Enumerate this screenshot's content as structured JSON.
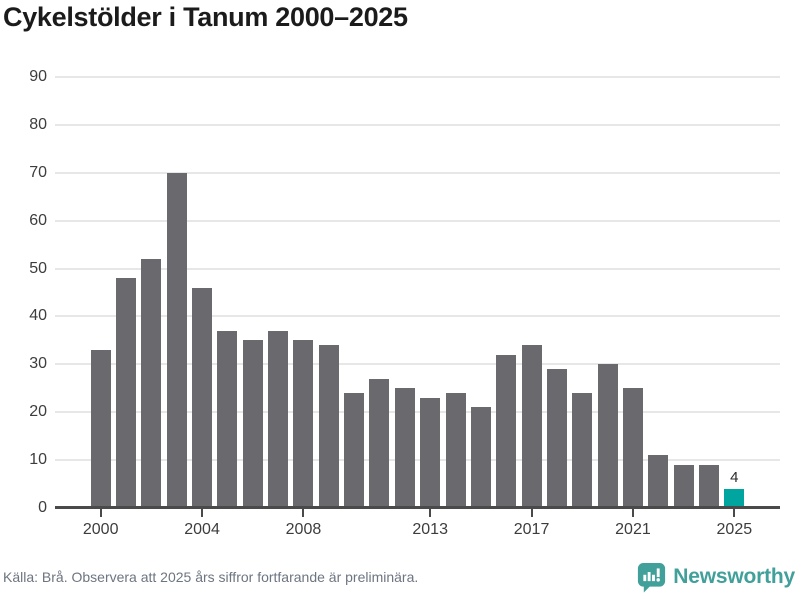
{
  "title": "Cykelstölder i Tanum 2000–2025",
  "chart_data": {
    "type": "bar",
    "title": "Cykelstölder i Tanum 2000–2025",
    "x": [
      2000,
      2001,
      2002,
      2003,
      2004,
      2005,
      2006,
      2007,
      2008,
      2009,
      2010,
      2011,
      2012,
      2013,
      2014,
      2015,
      2016,
      2017,
      2018,
      2019,
      2020,
      2021,
      2022,
      2023,
      2024,
      2025
    ],
    "values": [
      33,
      48,
      52,
      70,
      46,
      37,
      35,
      37,
      35,
      34,
      24,
      27,
      25,
      23,
      24,
      21,
      32,
      34,
      29,
      24,
      30,
      25,
      11,
      9,
      9,
      4
    ],
    "xlabel": "",
    "ylabel": "",
    "ylim": [
      0,
      90
    ],
    "yticks": [
      0,
      10,
      20,
      30,
      40,
      50,
      60,
      70,
      80,
      90
    ],
    "xticks": [
      2000,
      2004,
      2008,
      2013,
      2017,
      2021,
      2025
    ],
    "grid": "horizontal",
    "legend": "none",
    "bar_color": "#6a6a6e",
    "highlight_index": 25,
    "highlight_color": "#00a5a0",
    "highlight_value_label": "4"
  },
  "footer": {
    "source_text": "Källa: Brå. Observera att 2025 års siffror fortfarande är preliminära.",
    "brand": "Newsworthy",
    "brand_color": "#41a09a",
    "brand_icon": "newsworthy-speech-bubble-barchart-icon"
  }
}
